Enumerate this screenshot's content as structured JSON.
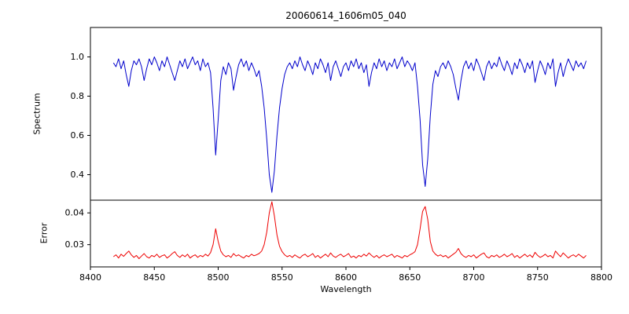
{
  "chart_data": {
    "type": "line",
    "title": "20060614_1606m05_040",
    "xlabel": "Wavelength",
    "xlim": [
      8400,
      8800
    ],
    "xticks": [
      8400,
      8450,
      8500,
      8550,
      8600,
      8650,
      8700,
      8750,
      8800
    ],
    "xtick_labels": [
      "8400",
      "8450",
      "8500",
      "8550",
      "8600",
      "8650",
      "8700",
      "8750",
      "8800"
    ],
    "x_start": 8418,
    "x_step": 2,
    "grid": false,
    "legend": "none",
    "panels": [
      {
        "series_name": "spectrum",
        "ylabel": "Spectrum",
        "ylim": [
          0.27,
          1.15
        ],
        "yticks": [
          0.4,
          0.6,
          0.8,
          1.0
        ],
        "ytick_labels": [
          "0.4",
          "0.6",
          "0.8",
          "1.0"
        ],
        "color": "#0000cc",
        "values": [
          0.97,
          0.95,
          0.99,
          0.94,
          0.98,
          0.91,
          0.85,
          0.93,
          0.98,
          0.96,
          0.99,
          0.95,
          0.88,
          0.94,
          0.99,
          0.96,
          1.0,
          0.97,
          0.93,
          0.98,
          0.95,
          1.0,
          0.96,
          0.92,
          0.88,
          0.93,
          0.98,
          0.95,
          0.99,
          0.94,
          0.97,
          1.0,
          0.96,
          0.98,
          0.93,
          0.99,
          0.95,
          0.97,
          0.92,
          0.74,
          0.5,
          0.68,
          0.88,
          0.95,
          0.91,
          0.97,
          0.94,
          0.83,
          0.9,
          0.96,
          0.99,
          0.95,
          0.98,
          0.93,
          0.97,
          0.94,
          0.9,
          0.93,
          0.85,
          0.74,
          0.58,
          0.4,
          0.31,
          0.42,
          0.6,
          0.74,
          0.84,
          0.91,
          0.95,
          0.97,
          0.94,
          0.98,
          0.95,
          1.0,
          0.96,
          0.93,
          0.98,
          0.95,
          0.91,
          0.97,
          0.94,
          0.99,
          0.96,
          0.92,
          0.97,
          0.88,
          0.95,
          0.98,
          0.94,
          0.9,
          0.95,
          0.97,
          0.93,
          0.98,
          0.95,
          0.99,
          0.94,
          0.97,
          0.92,
          0.96,
          0.85,
          0.92,
          0.97,
          0.94,
          0.99,
          0.95,
          0.98,
          0.93,
          0.97,
          0.95,
          0.99,
          0.94,
          0.97,
          1.0,
          0.95,
          0.98,
          0.96,
          0.93,
          0.97,
          0.85,
          0.68,
          0.45,
          0.34,
          0.48,
          0.7,
          0.86,
          0.93,
          0.9,
          0.95,
          0.97,
          0.94,
          0.98,
          0.95,
          0.91,
          0.84,
          0.78,
          0.88,
          0.95,
          0.98,
          0.94,
          0.97,
          0.93,
          0.99,
          0.96,
          0.92,
          0.88,
          0.95,
          0.98,
          0.94,
          0.97,
          0.95,
          1.0,
          0.96,
          0.93,
          0.98,
          0.95,
          0.91,
          0.97,
          0.94,
          0.99,
          0.96,
          0.92,
          0.97,
          0.94,
          0.98,
          0.87,
          0.93,
          0.98,
          0.95,
          0.91,
          0.97,
          0.94,
          0.99,
          0.85,
          0.92,
          0.97,
          0.9,
          0.95,
          0.99,
          0.96,
          0.93,
          0.98,
          0.95,
          0.97,
          0.94,
          0.98
        ]
      },
      {
        "series_name": "error",
        "ylabel": "Error",
        "ylim": [
          0.023,
          0.044
        ],
        "yticks": [
          0.03,
          0.04
        ],
        "ytick_labels": [
          "0.03",
          "0.04"
        ],
        "color": "#ee0000",
        "values": [
          0.0262,
          0.0268,
          0.0258,
          0.027,
          0.0263,
          0.0272,
          0.028,
          0.0268,
          0.026,
          0.0266,
          0.0256,
          0.0264,
          0.0272,
          0.0262,
          0.0258,
          0.0266,
          0.0262,
          0.027,
          0.026,
          0.0265,
          0.0268,
          0.0258,
          0.0264,
          0.0272,
          0.0278,
          0.0266,
          0.026,
          0.0268,
          0.0262,
          0.027,
          0.0258,
          0.0264,
          0.0268,
          0.026,
          0.0266,
          0.0262,
          0.027,
          0.0264,
          0.0275,
          0.03,
          0.035,
          0.031,
          0.028,
          0.0268,
          0.0262,
          0.0266,
          0.026,
          0.0272,
          0.0264,
          0.0268,
          0.0262,
          0.0258,
          0.0266,
          0.0262,
          0.027,
          0.0265,
          0.0268,
          0.0272,
          0.028,
          0.03,
          0.034,
          0.04,
          0.0435,
          0.039,
          0.033,
          0.0295,
          0.0278,
          0.0268,
          0.0262,
          0.0266,
          0.026,
          0.0268,
          0.0262,
          0.0258,
          0.0266,
          0.027,
          0.0262,
          0.0266,
          0.0272,
          0.026,
          0.0266,
          0.0258,
          0.0264,
          0.027,
          0.0262,
          0.0274,
          0.0264,
          0.026,
          0.0266,
          0.027,
          0.0262,
          0.0266,
          0.0272,
          0.026,
          0.0264,
          0.0258,
          0.0266,
          0.0262,
          0.027,
          0.0264,
          0.0274,
          0.0266,
          0.026,
          0.0266,
          0.0258,
          0.0264,
          0.0268,
          0.0262,
          0.0266,
          0.027,
          0.026,
          0.0266,
          0.0262,
          0.0258,
          0.0266,
          0.0262,
          0.0268,
          0.0272,
          0.0278,
          0.03,
          0.035,
          0.0405,
          0.042,
          0.038,
          0.031,
          0.028,
          0.027,
          0.0264,
          0.0268,
          0.0262,
          0.0266,
          0.0258,
          0.0264,
          0.027,
          0.0276,
          0.0288,
          0.0272,
          0.0264,
          0.026,
          0.0266,
          0.0262,
          0.0268,
          0.0258,
          0.0264,
          0.027,
          0.0274,
          0.0262,
          0.0258,
          0.0266,
          0.0262,
          0.0268,
          0.026,
          0.0264,
          0.027,
          0.0262,
          0.0266,
          0.0272,
          0.026,
          0.0266,
          0.0258,
          0.0264,
          0.027,
          0.0262,
          0.0268,
          0.026,
          0.0276,
          0.0266,
          0.026,
          0.0264,
          0.027,
          0.0262,
          0.0266,
          0.0258,
          0.028,
          0.027,
          0.0262,
          0.0274,
          0.0266,
          0.0258,
          0.0264,
          0.0268,
          0.0262,
          0.027,
          0.0264,
          0.0258,
          0.0266
        ]
      }
    ]
  }
}
